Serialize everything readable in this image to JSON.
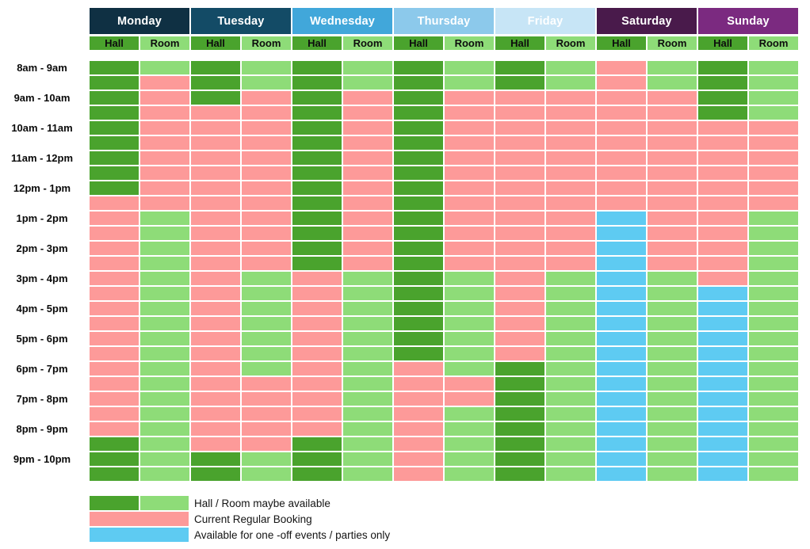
{
  "sub_headers": {
    "hall": "Hall",
    "room": "Room"
  },
  "legend": [
    {
      "swatch": "hall-room-green",
      "label": "Hall / Room maybe available"
    },
    {
      "swatch": "pink",
      "label": "Current Regular Booking"
    },
    {
      "swatch": "blue",
      "label": "Available for one -off events / parties only"
    }
  ],
  "colors": {
    "hall_available": "#4aa32d",
    "room_available": "#8edc78",
    "booked": "#fd9a99",
    "one_off_available": "#5ecbf2",
    "day_monday": "#0f3043",
    "day_tuesday": "#134b66",
    "day_wednesday": "#41a7da",
    "day_thursday": "#8cc9eb",
    "day_friday": "#c7e5f6",
    "day_saturday": "#491a4b",
    "day_sunday": "#7b2a80",
    "header_text": "#ffffff",
    "label_text": "#0d0d0d"
  },
  "chart_data": {
    "type": "heatmap",
    "days": [
      "Monday",
      "Tuesday",
      "Wednesday",
      "Thursday",
      "Friday",
      "Saturday",
      "Sunday"
    ],
    "columns_per_day": [
      "Hall",
      "Room"
    ],
    "time_slots": [
      "8am - 9am",
      "9am - 10am",
      "10am - 11am",
      "11am - 12pm",
      "12pm - 1pm",
      "1pm - 2pm",
      "2pm - 3pm",
      "3pm - 4pm",
      "4pm - 5pm",
      "5pm - 6pm",
      "6pm - 7pm",
      "7pm - 8pm",
      "8pm - 9pm",
      "9pm - 10pm"
    ],
    "sub_rows_per_slot": 2,
    "cell_key": {
      "G": "hall_available",
      "g": "room_available",
      "P": "booked",
      "B": "one_off_available"
    },
    "grid": [
      "GgGgGgGgGgPgGg",
      "GPGgGgGgGgPgGg",
      "GPGPGPGPPPPPGg",
      "GPPPGPGPPPPPGg",
      "GPPPGPGPPPPPPP",
      "GPPPGPGPPPPPPP",
      "GPPPGPGPPPPPPP",
      "GPPPGPGPPPPPPP",
      "GPPPGPGPPPPPPP",
      "PPPPGPGPPPPPPP",
      "PgPPGPGPPPBPPg",
      "PgPPGPGPPPBPPg",
      "PgPPGPGPPPBPPg",
      "PgPPGPGPPPBPPg",
      "PgPgPgGgPgBgPg",
      "PgPgPgGgPgBgBg",
      "PgPgPgGgPgBgBg",
      "PgPgPgGgPgBgBg",
      "PgPgPgGgPgBgBg",
      "PgPgPgGgPgBgBg",
      "PgPgPgPgGgBgBg",
      "PgPPPgPPGgBgBg",
      "PgPPPgPPGgBgBg",
      "PgPPPgPgGgBgBg",
      "PgPPPgPgGgBgBg",
      "GgPPGgPgGgBgBg",
      "GgGgGgPgGgBgBg",
      "GgGgGgPgGgBgBg"
    ]
  }
}
